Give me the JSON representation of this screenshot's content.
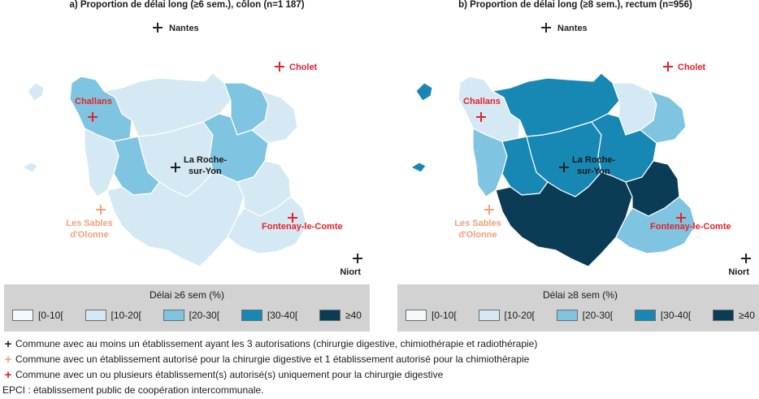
{
  "panels": [
    {
      "title": "a) Proportion de délai long (≥6 sem.), côlon (n=1 187)",
      "legend_title": "Délai ≥6 sem (%)",
      "fills": {
        "nw": "#7fc4e0",
        "sables": "#d4e9f3",
        "north": "#d4e9f3",
        "central": "#d4e9f3",
        "ne1": "#7fc4e0",
        "ne2": "#d4e9f3",
        "west_inner": "#7fc4e0",
        "center_right": "#7fc4e0",
        "south": "#d4e9f3",
        "east": "#d4e9f3",
        "se": "#d4e9f3",
        "island": "#d4e9f3"
      }
    },
    {
      "title": "b) Proportion de délai long (≥8 sem.), rectum (n=956)",
      "legend_title": "Délai ≥8 sem (%)",
      "fills": {
        "nw": "#d4e9f3",
        "sables": "#7fc4e0",
        "north": "#1787b4",
        "central": "#1787b4",
        "ne1": "#d4e9f3",
        "ne2": "#7fc4e0",
        "west_inner": "#1787b4",
        "center_right": "#1787b4",
        "south": "#0a3d55",
        "east": "#0a3d55",
        "se": "#7fc4e0",
        "island": "#1787b4"
      }
    }
  ],
  "legend_items": [
    {
      "label": "[0-10[",
      "color": "#f4f9fc"
    },
    {
      "label": "[10-20[",
      "color": "#d4e9f3"
    },
    {
      "label": "[20-30[",
      "color": "#7fc4e0"
    },
    {
      "label": "[30-40[",
      "color": "#1787b4"
    },
    {
      "label": "≥40",
      "color": "#0a3d55"
    }
  ],
  "cities": {
    "nantes": "Nantes",
    "cholet": "Cholet",
    "challans": "Challans",
    "roche_1": "La Roche-",
    "roche_2": "sur-Yon",
    "sables_1": "Les Sables",
    "sables_2": "d'Olonne",
    "fontenay": "Fontenay-le-Comte",
    "niort": "Niort"
  },
  "colors": {
    "black_marker": "#222222",
    "orange_marker": "#f0a07a",
    "red_marker": "#e8202a"
  },
  "notes": [
    {
      "marker": "black",
      "text": "Commune avec au moins un établissement ayant les 3 autorisations (chirurgie digestive, chimiothérapie et radiothérapie)"
    },
    {
      "marker": "orange",
      "text": "Commune avec un établissement autorisé pour la chirurgie digestive et 1 établissement autorisé pour la chimiothérapie"
    },
    {
      "marker": "red",
      "text": "Commune avec un ou plusieurs établissement(s) autorisé(s) uniquement pour la chirurgie digestive"
    },
    {
      "marker": "",
      "text": "EPCI : établissement public de coopération intercommunale."
    }
  ]
}
